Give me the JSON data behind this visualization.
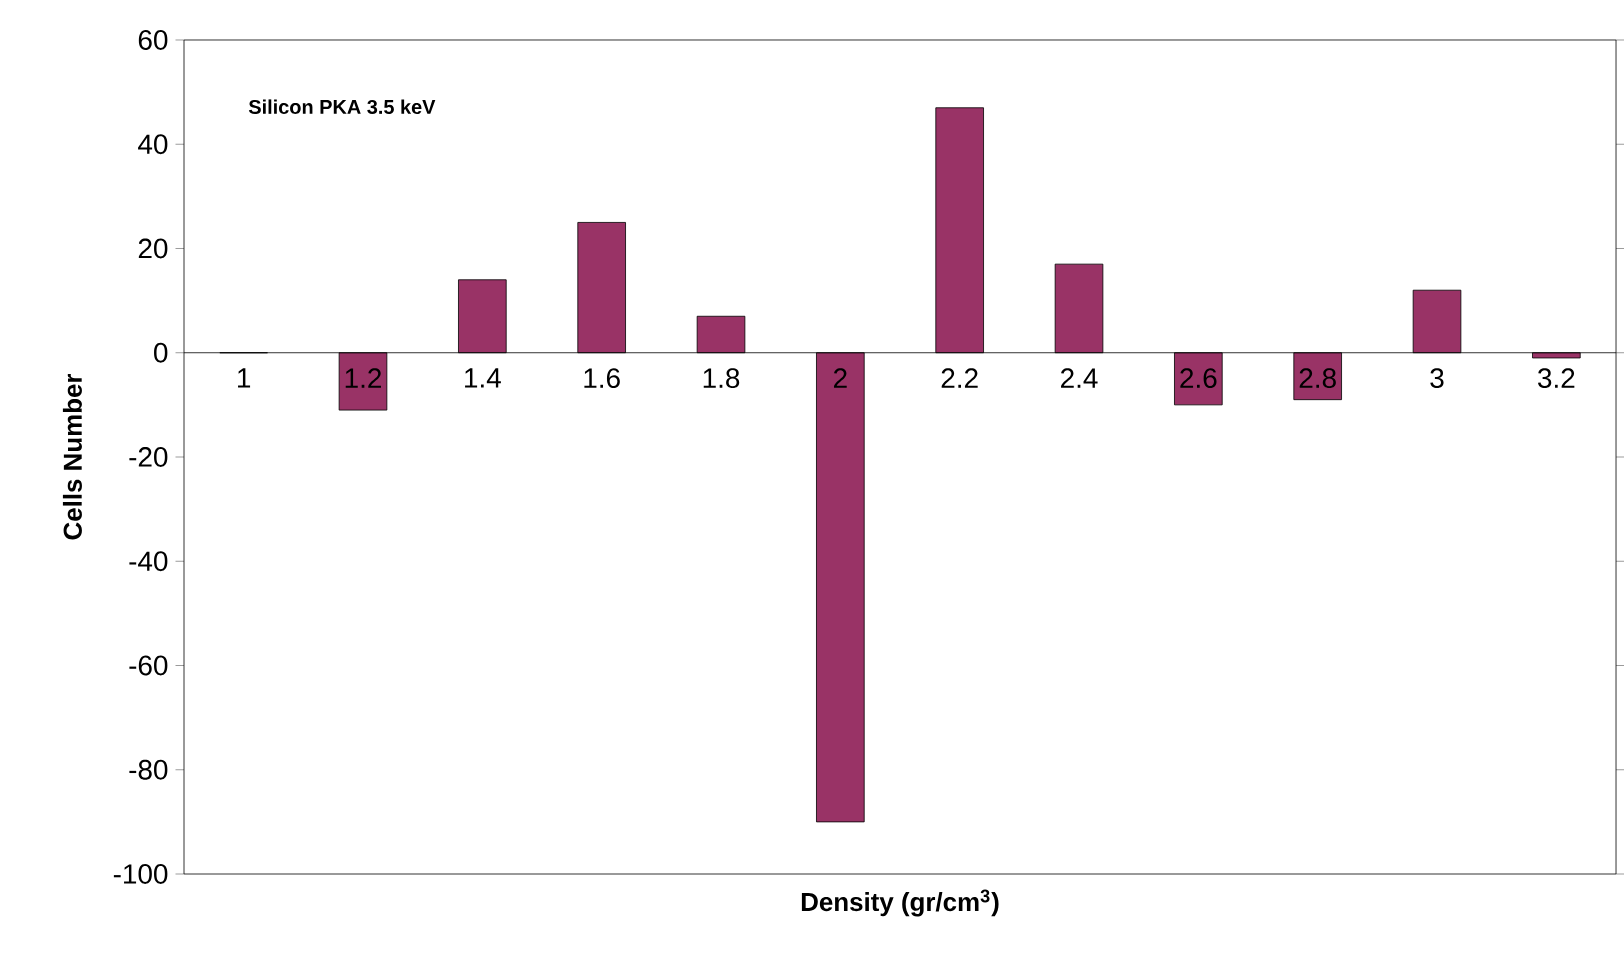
{
  "chart_data": {
    "type": "bar",
    "annotations": [
      "Silicon PKA 3.5 keV"
    ],
    "xlabel": "Density (gr/cm$^{3}$)",
    "ylabel": "Cells Number",
    "categories": [
      "1",
      "1.2",
      "1.4",
      "1.6",
      "1.8",
      "2",
      "2.2",
      "2.4",
      "2.6",
      "2.8",
      "3",
      "3.2"
    ],
    "values": [
      0,
      -11,
      14,
      25,
      7,
      -90,
      47,
      17,
      -10,
      -9,
      12,
      -1
    ],
    "color": "#993366",
    "ylim": [
      -100,
      60
    ],
    "yticks": [
      -100,
      -80,
      -60,
      -40,
      -20,
      0,
      20,
      40,
      60
    ]
  }
}
